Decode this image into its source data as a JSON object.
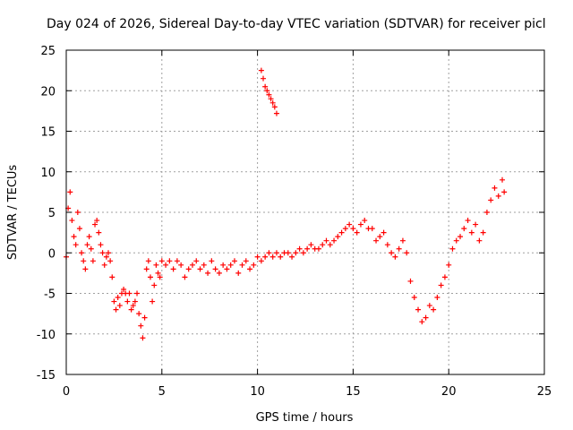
{
  "chart_data": {
    "type": "scatter",
    "title": "Day 024 of 2026, Sidereal Day-to-day VTEC variation (SDTVAR) for receiver picl",
    "xlabel": "GPS time / hours",
    "ylabel": "SDTVAR / TECUs",
    "xlim": [
      0,
      25
    ],
    "ylim": [
      -15,
      25
    ],
    "xticks": [
      0,
      5,
      10,
      15,
      20,
      25
    ],
    "yticks": [
      -15,
      -10,
      -5,
      0,
      5,
      10,
      15,
      20,
      25
    ],
    "grid": true,
    "marker": "+",
    "color": "#ff0000",
    "series": [
      {
        "name": "SDTVAR",
        "x": [
          0.0,
          0.1,
          0.2,
          0.3,
          0.4,
          0.5,
          0.6,
          0.7,
          0.8,
          0.9,
          1.0,
          1.1,
          1.2,
          1.3,
          1.4,
          1.5,
          1.6,
          1.7,
          1.8,
          1.9,
          2.0,
          2.1,
          2.2,
          2.3,
          2.4,
          2.5,
          2.6,
          2.7,
          2.8,
          2.9,
          3.0,
          3.1,
          3.2,
          3.3,
          3.4,
          3.5,
          3.6,
          3.7,
          3.8,
          3.9,
          4.0,
          4.1,
          4.2,
          4.3,
          4.4,
          4.5,
          4.6,
          4.7,
          4.8,
          4.9,
          5.0,
          5.2,
          5.4,
          5.6,
          5.8,
          6.0,
          6.2,
          6.4,
          6.6,
          6.8,
          7.0,
          7.2,
          7.4,
          7.6,
          7.8,
          8.0,
          8.2,
          8.4,
          8.6,
          8.8,
          9.0,
          9.2,
          9.4,
          9.6,
          9.8,
          10.0,
          10.2,
          10.4,
          10.6,
          10.8,
          11.0,
          11.2,
          11.4,
          11.6,
          11.8,
          12.0,
          12.2,
          12.4,
          12.6,
          12.8,
          13.0,
          13.2,
          13.4,
          13.6,
          13.8,
          14.0,
          14.2,
          14.4,
          14.6,
          14.8,
          15.0,
          15.2,
          15.4,
          15.6,
          15.8,
          16.0,
          16.2,
          16.4,
          16.6,
          16.8,
          17.0,
          17.2,
          17.4,
          17.6,
          17.8,
          18.0,
          18.2,
          18.4,
          18.6,
          18.8,
          19.0,
          19.2,
          19.4,
          19.6,
          19.8,
          20.0,
          20.2,
          20.4,
          20.6,
          20.8,
          21.0,
          21.2,
          21.4,
          21.6,
          21.8,
          22.0,
          22.2,
          22.4,
          22.6,
          22.8,
          22.9,
          10.2,
          10.3,
          10.4,
          10.5,
          10.6,
          10.7,
          10.8,
          10.9,
          11.0
        ],
        "y": [
          -0.5,
          5.5,
          7.5,
          4.0,
          2.0,
          1.0,
          5.0,
          3.0,
          0.0,
          -1.0,
          -2.0,
          1.0,
          2.0,
          0.5,
          -1.0,
          3.5,
          4.0,
          2.5,
          1.0,
          0.0,
          -1.5,
          -0.5,
          0.0,
          -1.0,
          -3.0,
          -6.0,
          -7.0,
          -5.5,
          -6.5,
          -5.0,
          -4.5,
          -5.0,
          -6.0,
          -5.0,
          -7.0,
          -6.5,
          -6.0,
          -5.0,
          -7.5,
          -9.0,
          -10.5,
          -8.0,
          -2.0,
          -1.0,
          -3.0,
          -6.0,
          -4.0,
          -1.5,
          -2.5,
          -3.0,
          -1.0,
          -1.5,
          -1.0,
          -2.0,
          -1.0,
          -1.5,
          -3.0,
          -2.0,
          -1.5,
          -1.0,
          -2.0,
          -1.5,
          -2.5,
          -1.0,
          -2.0,
          -2.5,
          -1.5,
          -2.0,
          -1.5,
          -1.0,
          -2.5,
          -1.5,
          -1.0,
          -2.0,
          -1.5,
          -0.5,
          -1.0,
          -0.5,
          0.0,
          -0.5,
          0.0,
          -0.5,
          0.0,
          0.0,
          -0.5,
          0.0,
          0.5,
          0.0,
          0.5,
          1.0,
          0.5,
          0.5,
          1.0,
          1.5,
          1.0,
          1.5,
          2.0,
          2.5,
          3.0,
          3.5,
          3.0,
          2.5,
          3.5,
          4.0,
          3.0,
          3.0,
          1.5,
          2.0,
          2.5,
          1.0,
          0.0,
          -0.5,
          0.5,
          1.5,
          0.0,
          -3.5,
          -5.5,
          -7.0,
          -8.5,
          -8.0,
          -6.5,
          -7.0,
          -5.5,
          -4.0,
          -3.0,
          -1.5,
          0.5,
          1.5,
          2.0,
          3.0,
          4.0,
          2.5,
          3.5,
          1.5,
          2.5,
          5.0,
          6.5,
          8.0,
          7.0,
          9.0,
          7.5,
          22.5,
          21.5,
          20.5,
          20.0,
          19.5,
          19.0,
          18.5,
          18.0,
          17.2
        ]
      }
    ]
  }
}
